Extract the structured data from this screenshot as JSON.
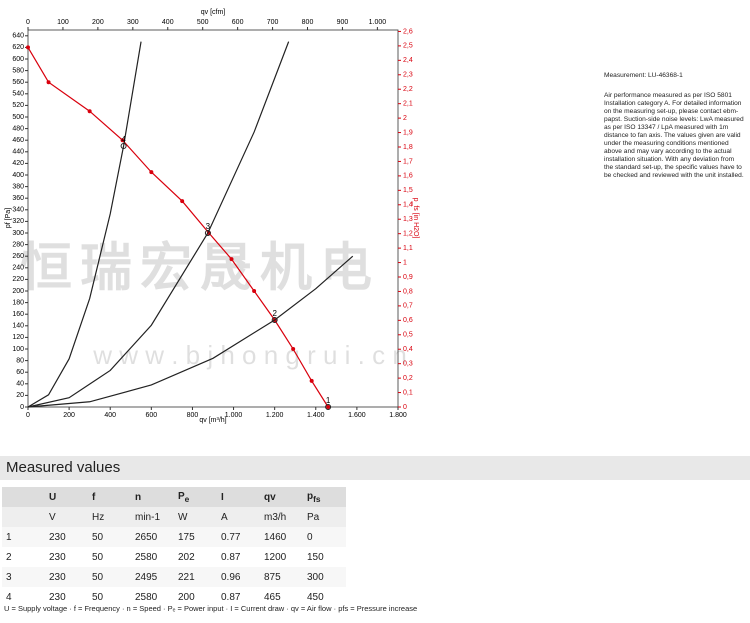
{
  "chart_data": {
    "type": "line",
    "x_label": "qv [m³/h]",
    "x2_label": "qv [cfm]",
    "y_label": "pf [Pa]",
    "y2_label": "p_fs [in H2O]",
    "xlim": [
      0,
      1800
    ],
    "xticks": [
      0,
      200,
      400,
      600,
      800,
      {
        "value": 1000,
        "label": "1.000"
      },
      {
        "value": 1200,
        "label": "1.200"
      },
      {
        "value": 1400,
        "label": "1.400"
      },
      {
        "value": 1600,
        "label": "1.600"
      },
      {
        "value": 1800,
        "label": "1.800"
      }
    ],
    "x2lim": [
      0,
      1059
    ],
    "x2ticks": [
      0,
      100,
      200,
      300,
      400,
      500,
      600,
      700,
      800,
      900,
      {
        "value": 1000,
        "label": "1.000"
      }
    ],
    "ylim": [
      0,
      650
    ],
    "yticks": [
      0,
      20,
      40,
      60,
      80,
      100,
      120,
      140,
      160,
      180,
      200,
      220,
      240,
      260,
      280,
      300,
      320,
      340,
      360,
      380,
      400,
      420,
      440,
      460,
      480,
      500,
      520,
      540,
      560,
      580,
      600,
      620,
      640
    ],
    "y2lim": [
      0,
      2.61
    ],
    "y2ticks": [
      0,
      {
        "value": 0.1,
        "label": "0,1"
      },
      {
        "value": 0.2,
        "label": "0,2"
      },
      {
        "value": 0.3,
        "label": "0,3"
      },
      {
        "value": 0.4,
        "label": "0,4"
      },
      {
        "value": 0.5,
        "label": "0,5"
      },
      {
        "value": 0.6,
        "label": "0,6"
      },
      {
        "value": 0.7,
        "label": "0,7"
      },
      {
        "value": 0.8,
        "label": "0,8"
      },
      {
        "value": 0.9,
        "label": "0,9"
      },
      1,
      {
        "value": 1.1,
        "label": "1,1"
      },
      {
        "value": 1.2,
        "label": "1,2"
      },
      {
        "value": 1.3,
        "label": "1,3"
      },
      {
        "value": 1.4,
        "label": "1,4"
      },
      {
        "value": 1.5,
        "label": "1,5"
      },
      {
        "value": 1.6,
        "label": "1,6"
      },
      {
        "value": 1.7,
        "label": "1,7"
      },
      {
        "value": 1.8,
        "label": "1,8"
      },
      {
        "value": 1.9,
        "label": "1,9"
      },
      2,
      {
        "value": 2.1,
        "label": "2,1"
      },
      {
        "value": 2.2,
        "label": "2,2"
      },
      {
        "value": 2.3,
        "label": "2,3"
      },
      {
        "value": 2.4,
        "label": "2,4"
      },
      {
        "value": 2.5,
        "label": "2,5"
      },
      {
        "value": 2.6,
        "label": "2,6"
      }
    ],
    "series": [
      {
        "color": "#d9000d",
        "markers": true,
        "x": [
          0,
          100,
          300,
          460,
          600,
          750,
          880,
          990,
          1100,
          1200,
          1290,
          1380,
          1460
        ],
        "values": [
          620,
          560,
          510,
          460,
          405,
          355,
          300,
          255,
          200,
          150,
          100,
          45,
          0
        ]
      },
      {
        "color": "#222222",
        "markers": false,
        "x": [
          0,
          100,
          200,
          300,
          400,
          465,
          550
        ],
        "values": [
          0,
          21,
          83,
          187,
          333,
          450,
          630
        ]
      },
      {
        "color": "#222222",
        "markers": false,
        "x": [
          0,
          200,
          400,
          600,
          875,
          1100,
          1268
        ],
        "values": [
          0,
          16,
          63,
          141,
          300,
          474,
          630
        ]
      },
      {
        "color": "#222222",
        "markers": false,
        "x": [
          0,
          300,
          600,
          900,
          1200,
          1400,
          1580
        ],
        "values": [
          0,
          9,
          38,
          84,
          150,
          204,
          260
        ]
      }
    ],
    "annotations": [
      {
        "text": "4",
        "x": 465,
        "y": 450
      },
      {
        "text": "3",
        "x": 875,
        "y": 300
      },
      {
        "text": "2",
        "x": 1200,
        "y": 150
      },
      {
        "text": "1",
        "x": 1460,
        "y": 0
      }
    ],
    "watermark": [
      "恒瑞宏晟机电",
      "w w w . b j h o n g r u i . c n"
    ]
  },
  "measurement": {
    "title": "Measurement: LU-46368-1",
    "text": "Air performance measured as per ISO 5801 Installation category A. For detailed information on the measuring set-up, please contact ebm-papst. Suction-side noise levels: LwA measured as per ISO 13347 / LpA measured with 1m distance to fan axis. The values given are valid under the measuring conditions mentioned above and may vary according to the actual installation situation. With any deviation from the standard set-up, the specific values have to be checked and reviewed with the unit installed."
  },
  "table": {
    "title": "Measured values",
    "headers": [
      [
        "U"
      ],
      [
        "f"
      ],
      [
        "n"
      ],
      [
        "P",
        "e"
      ],
      [
        "I"
      ],
      [
        "qv"
      ],
      [
        "p",
        "fs"
      ]
    ],
    "units": [
      "V",
      "Hz",
      "min-1",
      "W",
      "A",
      "m3/h",
      "Pa"
    ],
    "rows": [
      [
        1,
        230,
        50,
        2650,
        175,
        0.77,
        1460,
        0
      ],
      [
        2,
        230,
        50,
        2580,
        202,
        0.87,
        1200,
        150
      ],
      [
        3,
        230,
        50,
        2495,
        221,
        0.96,
        875,
        300
      ],
      [
        4,
        230,
        50,
        2580,
        200,
        0.87,
        465,
        450
      ]
    ],
    "note": "U = Supply voltage · f = Frequency · n = Speed · Pₑ = Power input · I = Current draw · qv = Air flow · pfs = Pressure increase"
  }
}
